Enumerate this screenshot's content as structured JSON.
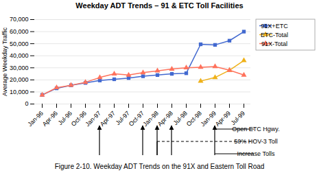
{
  "chart_data": {
    "type": "line",
    "title": "Weekday ADT Trends – 91 & ETC Toll Facilities",
    "caption": "Figure 2-10. Weekday ADT Trends on the 91X and Eastern Toll Road",
    "ylabel": "Average Weekday Traffic",
    "categories": [
      "Jan-96",
      "Apr-96",
      "Jul-96",
      "Oct-96",
      "Jan-97",
      "Apr-97",
      "Jul-97",
      "Oct-97",
      "Jan-98",
      "Apr-98",
      "Jul-98",
      "Oct-98",
      "Jan-99",
      "Apr-99",
      "Jul-99"
    ],
    "series": [
      {
        "name": "91X+ETC",
        "marker": "square",
        "values": [
          7500,
          13000,
          15500,
          17500,
          19500,
          20500,
          21500,
          23000,
          24000,
          25000,
          25500,
          49500,
          49000,
          52500,
          60000
        ]
      },
      {
        "name": "ETC-Total",
        "marker": "triangle",
        "values": [
          null,
          null,
          null,
          null,
          null,
          null,
          null,
          null,
          null,
          null,
          null,
          19000,
          22000,
          28000,
          36000
        ]
      },
      {
        "name": "91X-Total",
        "marker": "triangle",
        "values": [
          7500,
          13500,
          15500,
          18000,
          22000,
          25000,
          24000,
          26000,
          27500,
          29000,
          30000,
          30500,
          31000,
          28000,
          24000
        ]
      }
    ],
    "ylim": [
      0,
      70000
    ],
    "yticks": [
      0,
      {
        "value": 10000,
        "label": "10,000"
      },
      {
        "value": 20000,
        "label": "20,000"
      },
      {
        "value": 30000,
        "label": "30,000"
      },
      {
        "value": 40000,
        "label": "40,000"
      },
      {
        "value": 50000,
        "label": "50,000"
      },
      {
        "value": 60000,
        "label": "60,000"
      },
      {
        "value": 70000,
        "label": "70,000"
      }
    ],
    "grid": true,
    "legend": "right",
    "arrows": [
      "Jan-97",
      "Oct-97",
      "Jan-98",
      "Apr-98",
      "Jan-99"
    ],
    "annotations": [
      {
        "text": "Open ETC Hgwy.",
        "from": "Jan-99",
        "line_style": "solid"
      },
      {
        "text": "50% HOV-3 Toll",
        "from": "Jan-98",
        "line_style": "dashed"
      },
      {
        "text": "Increase Tolls",
        "from": "Jan-99",
        "line_style": "solid"
      }
    ]
  }
}
